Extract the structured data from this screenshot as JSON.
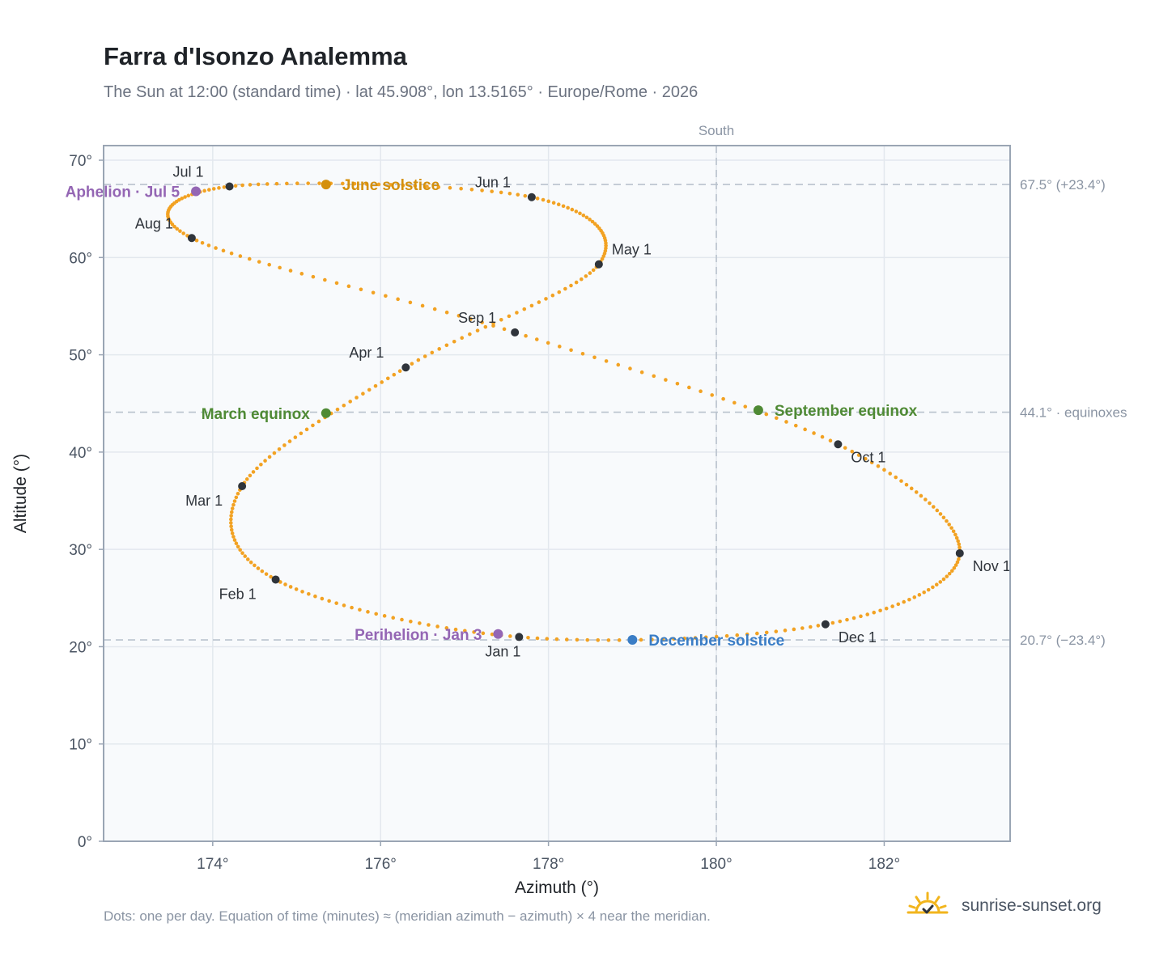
{
  "header": {
    "title": "Farra d'Isonzo Analemma",
    "subtitle": "The Sun at 12:00 (standard time) · lat 45.908°, lon 13.5165° · Europe/Rome · 2026"
  },
  "footer": {
    "note": "Dots: one per day. Equation of time (minutes) ≈ (meridian azimuth − azimuth) × 4 near the meridian.",
    "brand": "sunrise-sunset.org",
    "brand_icon": "sun-checkmark-icon"
  },
  "colors": {
    "curve": "#f2a223",
    "month_marker": "#2f343b",
    "june_solstice": "#d4900d",
    "december_solstice": "#3a7dc6",
    "equinox": "#4f8a35",
    "apsis": "#9466b4",
    "reference_line": "#b9c2cd",
    "plot_background": "#f8fafc",
    "grid": "#e3e8ee",
    "frame": "#9aa5b4"
  },
  "chart_data": {
    "type": "scatter",
    "title": "Farra d'Isonzo Analemma",
    "xlabel": "Azimuth (°)",
    "ylabel": "Altitude (°)",
    "xlim": [
      172.7,
      183.5
    ],
    "ylim": [
      0,
      71.5
    ],
    "x_ticks": [
      174,
      176,
      178,
      180,
      182
    ],
    "x_tick_labels": [
      "174°",
      "176°",
      "178°",
      "180°",
      "182°"
    ],
    "y_ticks": [
      0,
      10,
      20,
      30,
      40,
      50,
      60,
      70
    ],
    "y_tick_labels": [
      "0°",
      "10°",
      "20°",
      "30°",
      "40°",
      "50°",
      "60°",
      "70°"
    ],
    "grid": true,
    "meridian": {
      "azimuth": 180,
      "label": "South"
    },
    "reference_lines": [
      {
        "altitude": 67.5,
        "label": "67.5° (+23.4°)"
      },
      {
        "altitude": 44.1,
        "label": "44.1° · equinoxes"
      },
      {
        "altitude": 20.7,
        "label": "20.7° (−23.4°)"
      }
    ],
    "month_markers": [
      {
        "label": "Jan 1",
        "azimuth": 177.65,
        "altitude": 21.0,
        "label_pos": "below"
      },
      {
        "label": "Feb 1",
        "azimuth": 174.75,
        "altitude": 26.9,
        "label_pos": "below-left"
      },
      {
        "label": "Mar 1",
        "azimuth": 174.35,
        "altitude": 36.5,
        "label_pos": "below-left"
      },
      {
        "label": "Apr 1",
        "azimuth": 176.3,
        "altitude": 48.7,
        "label_pos": "above-left"
      },
      {
        "label": "May 1",
        "azimuth": 178.6,
        "altitude": 59.3,
        "label_pos": "above-right"
      },
      {
        "label": "Jun 1",
        "azimuth": 177.8,
        "altitude": 66.2,
        "label_pos": "above-left"
      },
      {
        "label": "Jul 1",
        "azimuth": 174.2,
        "altitude": 67.3,
        "label_pos": "above-left"
      },
      {
        "label": "Aug 1",
        "azimuth": 173.75,
        "altitude": 62.0,
        "label_pos": "above-left"
      },
      {
        "label": "Sep 1",
        "azimuth": 177.6,
        "altitude": 52.3,
        "label_pos": "above-left"
      },
      {
        "label": "Oct 1",
        "azimuth": 181.45,
        "altitude": 40.8,
        "label_pos": "below-right"
      },
      {
        "label": "Nov 1",
        "azimuth": 182.9,
        "altitude": 29.6,
        "label_pos": "below-right"
      },
      {
        "label": "Dec 1",
        "azimuth": 181.3,
        "altitude": 22.3,
        "label_pos": "below-right"
      }
    ],
    "events": [
      {
        "label": "June solstice",
        "azimuth": 175.35,
        "altitude": 67.5,
        "color": "#d4900d",
        "label_side": "right"
      },
      {
        "label": "December solstice",
        "azimuth": 179.0,
        "altitude": 20.7,
        "color": "#3a7dc6",
        "label_side": "right"
      },
      {
        "label": "March equinox",
        "azimuth": 175.35,
        "altitude": 44.0,
        "color": "#4f8a35",
        "label_side": "left"
      },
      {
        "label": "September equinox",
        "azimuth": 180.5,
        "altitude": 44.3,
        "color": "#4f8a35",
        "label_side": "right"
      },
      {
        "label": "Aphelion · Jul 5",
        "azimuth": 173.8,
        "altitude": 66.8,
        "color": "#9466b4",
        "label_side": "left"
      },
      {
        "label": "Perihelion · Jan 3",
        "azimuth": 177.4,
        "altitude": 21.3,
        "color": "#9466b4",
        "label_side": "left"
      }
    ]
  }
}
